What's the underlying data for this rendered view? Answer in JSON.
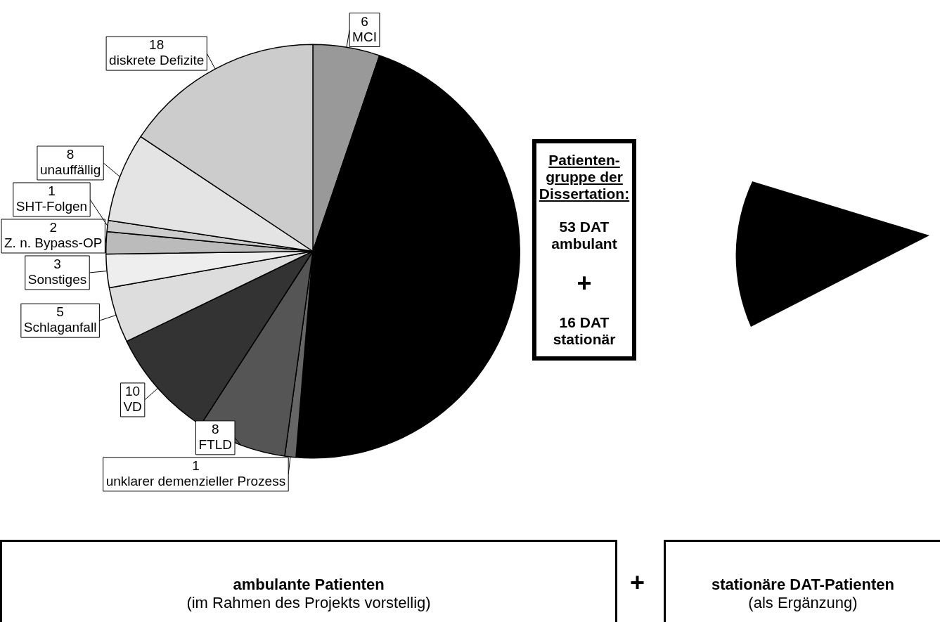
{
  "chart_data": {
    "type": "pie",
    "categories": [
      "MCI",
      null,
      "unklarer demenzieller Prozess",
      "FTLD",
      "VD",
      "Schlaganfall",
      "Sonstiges",
      "Z. n. Bypass-OP",
      "SHT-Folgen",
      "unauffällig",
      "diskrete Defizite"
    ],
    "values": [
      6,
      53,
      1,
      8,
      10,
      5,
      3,
      2,
      1,
      8,
      18
    ],
    "value_labels": [
      "6",
      null,
      "1",
      "8",
      "10",
      "5",
      "3",
      "2",
      "1",
      "8",
      "18"
    ],
    "colors": [
      "#999999",
      "#000000",
      "#666666",
      "#555555",
      "#333333",
      "#dddddd",
      "#eeeeee",
      "#bbbbbb",
      "#cccccc",
      "#e4e4e4",
      "#cccccc"
    ],
    "annotations": [
      "Patienten-gruppe der Dissertation:",
      "53 DAT ambulant",
      "+",
      "16 DAT stationär",
      "ambulante Patienten",
      "(im Rahmen des Projekts vorstellig)",
      "+",
      "stationäre DAT-Patienten",
      "(als Ergänzung)"
    ]
  }
}
